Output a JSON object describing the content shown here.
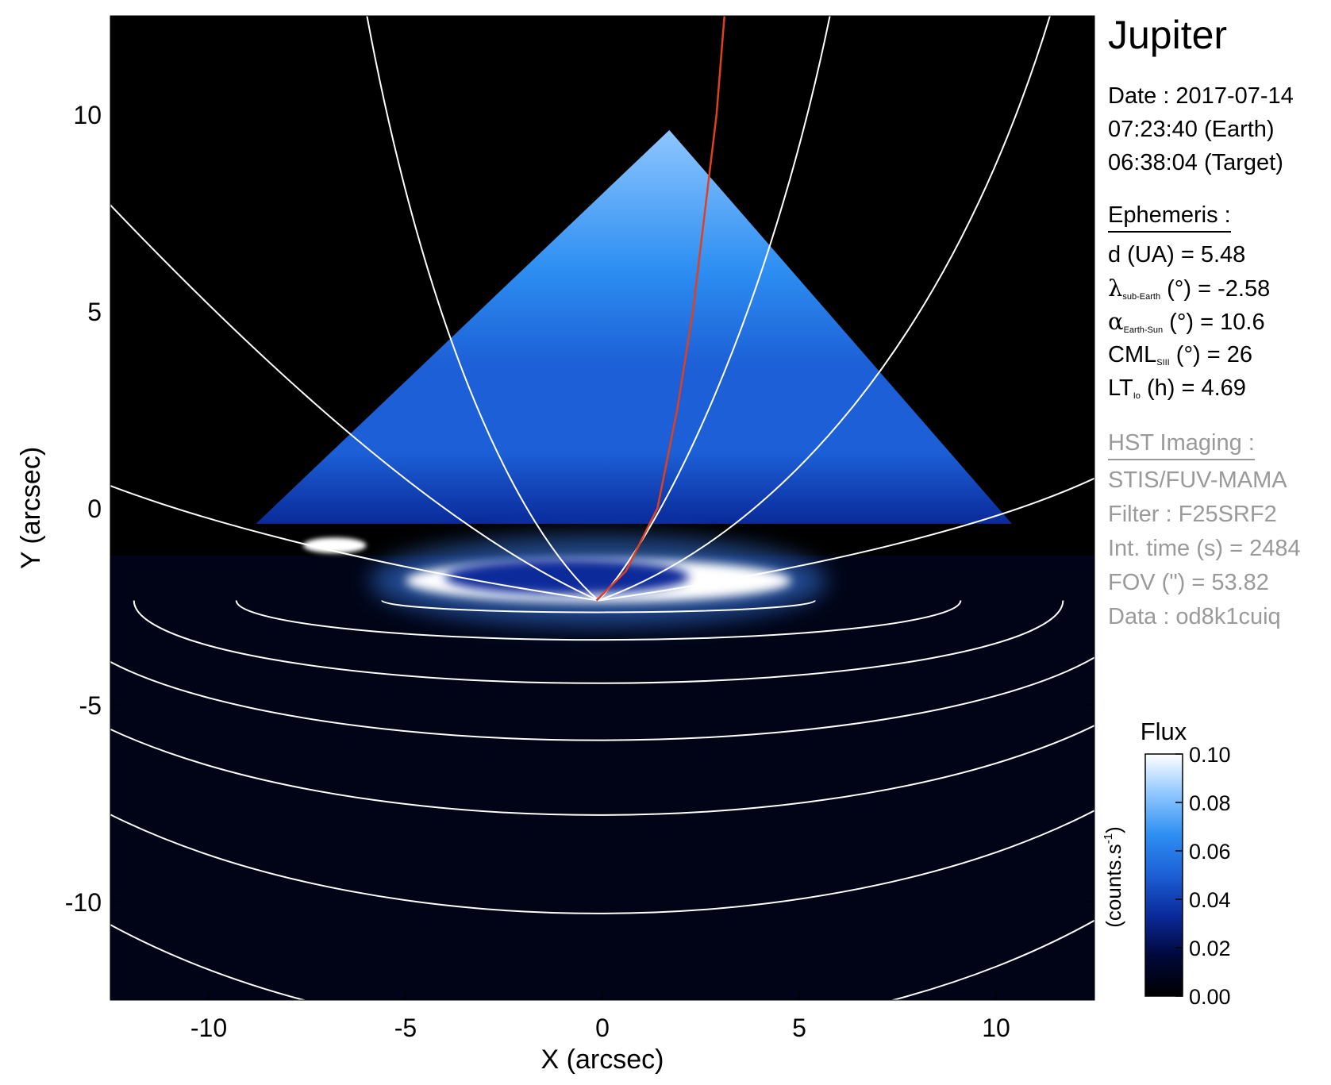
{
  "planet": "Jupiter",
  "obs": {
    "date_line": "Date : 2017-07-14",
    "earth_time": "07:23:40 (Earth)",
    "target_time": "06:38:04 (Target)"
  },
  "ephemeris": {
    "header": "Ephemeris :",
    "rows": [
      {
        "main": "d (UA)    = 5.48"
      },
      {
        "sym": "λ",
        "sub": "sub-Earth",
        "rest": " (°) = -2.58"
      },
      {
        "sym": "α",
        "sub": "Earth-Sun",
        "rest": " (°) = 10.6"
      },
      {
        "sym": "CML",
        "sub": "SIII",
        "rest": " (°) = 26"
      },
      {
        "sym": "LT",
        "sub": "Io",
        "rest": " (h) = 4.69"
      }
    ]
  },
  "imaging": {
    "header": "HST Imaging :",
    "rows": [
      "STIS/FUV-MAMA",
      "Filter : F25SRF2",
      "Int. time (s) = 2484",
      "FOV (\") = 53.82",
      "Data : od8k1cuiq"
    ]
  },
  "colorbar": {
    "title": "Flux",
    "label": "(counts.s",
    "label_sup": "-1",
    "label_end": ")",
    "range": [
      0.0,
      0.1
    ],
    "ticks": [
      "0.10",
      "0.08",
      "0.06",
      "0.04",
      "0.02",
      "0.00"
    ],
    "tick_values": [
      0.1,
      0.08,
      0.06,
      0.04,
      0.02,
      0.0
    ],
    "colormap": [
      "#000000",
      "#00083a",
      "#0a2a9a",
      "#1c5fd6",
      "#2e8ff2",
      "#8ec6ff",
      "#ffffff"
    ]
  },
  "chart_data": {
    "type": "heatmap",
    "title": "",
    "xlabel": "X (arcsec)",
    "ylabel": "Y (arcsec)",
    "xlim": [
      -12.5,
      12.5
    ],
    "ylim": [
      -12.5,
      12.5
    ],
    "x_ticks": [
      -10,
      -5,
      0,
      5,
      10
    ],
    "y_ticks": [
      10,
      5,
      0,
      -5,
      -10
    ],
    "x_tick_labels": [
      "-10",
      "-5",
      "0",
      "5",
      "10"
    ],
    "y_tick_labels": [
      "10",
      "5",
      "0",
      "-5",
      "-10"
    ],
    "background": "#000000",
    "grid_color": "#ffffff",
    "footpath_color": "#e0401c",
    "illuminated_region": {
      "shape": "triangle",
      "apex": [
        1.7,
        9.6
      ],
      "left_corner": [
        -8.8,
        -0.4
      ],
      "right_corner": [
        10.4,
        -0.4
      ],
      "flux_level": 0.06
    },
    "auroral_oval": {
      "center": [
        -0.1,
        -1.85
      ],
      "semi_x": 4.9,
      "semi_y": 0.55,
      "flux_level": 0.1
    },
    "auroral_inner_oval": {
      "center": [
        -0.9,
        -1.75
      ],
      "semi_x": 3.1,
      "semi_y": 0.45,
      "flux_level": 0.03
    },
    "satellite_spot": {
      "center": [
        -6.8,
        -0.95
      ],
      "semi_x": 0.8,
      "semi_y": 0.2,
      "flux_level": 0.1
    },
    "pole": [
      -0.1,
      -2.35
    ],
    "footpath": [
      [
        -0.15,
        -2.35
      ],
      [
        0.6,
        -1.6
      ],
      [
        1.4,
        0.0
      ],
      [
        1.9,
        2.5
      ],
      [
        2.3,
        5.0
      ],
      [
        2.6,
        7.5
      ],
      [
        2.9,
        10.0
      ],
      [
        3.1,
        12.5
      ]
    ]
  }
}
